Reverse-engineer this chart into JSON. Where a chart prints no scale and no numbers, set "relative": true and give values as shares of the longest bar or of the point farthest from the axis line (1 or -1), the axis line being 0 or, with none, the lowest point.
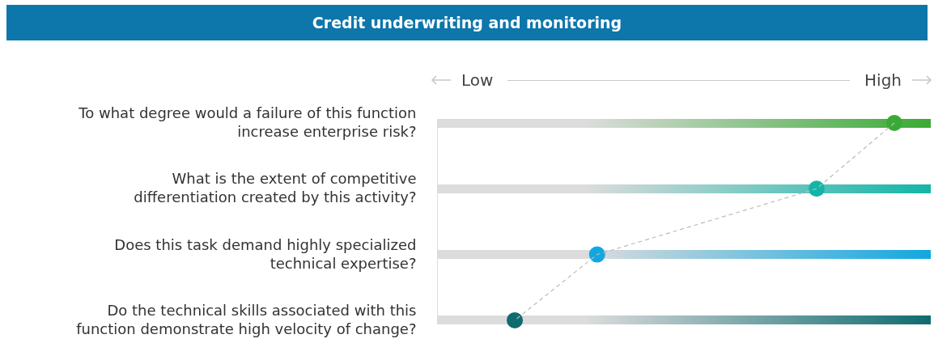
{
  "chart_data": {
    "type": "line",
    "title": "Credit underwriting and monitoring",
    "annotations": [
      "Low",
      "High"
    ],
    "categories": [
      "To what degree would a failure of this function increase enterprise risk?",
      "What is the extent of competitive differentiation created by this activity?",
      "Does this task demand highly specialized technical expertise?",
      "Do the technical skills associated with this function demonstrate high velocity of change?"
    ],
    "values": [
      1,
      0.83,
      0.35,
      0.17
    ],
    "color": "#bbbbbb",
    "colors": [
      "#3aaa35",
      "#13b5a8",
      "#12a7e0",
      "#0f6b70"
    ],
    "relative": true,
    "orientation": "horizontal",
    "marker": "circle",
    "line_style": "dashed"
  }
}
